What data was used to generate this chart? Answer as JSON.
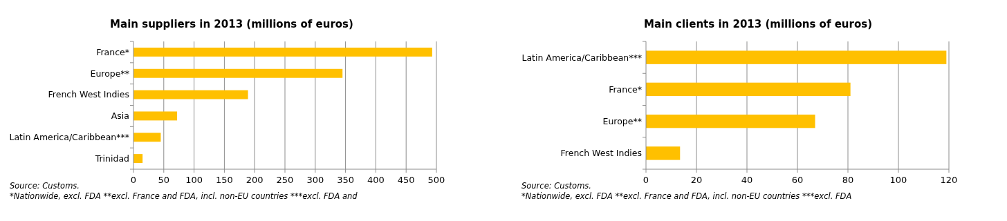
{
  "chart_data": [
    {
      "type": "bar",
      "orientation": "horizontal",
      "title": "Main suppliers in 2013 (millions of euros)",
      "categories": [
        "France*",
        "Europe**",
        "French West Indies",
        "Asia",
        "Latin America/Caribbean***",
        "Trinidad"
      ],
      "values": [
        493,
        345,
        189,
        72,
        45,
        15
      ],
      "color": "#ffc000",
      "xlim": [
        0,
        500
      ],
      "xticks": [
        0,
        50,
        100,
        150,
        200,
        250,
        300,
        350,
        400,
        450,
        500
      ],
      "grid": "x",
      "annotations": [
        "Source: Customs.",
        "*Nationwide, excl. FDA **excl. France and FDA, incl. non-EU countries ***excl. FDA and"
      ]
    },
    {
      "type": "bar",
      "orientation": "horizontal",
      "title": "Main clients in 2013 (millions of euros)",
      "categories": [
        "Latin America/Caribbean***",
        "France*",
        "Europe**",
        "French West Indies"
      ],
      "values": [
        119,
        81,
        67,
        13.5
      ],
      "color": "#ffc000",
      "xlim": [
        0,
        120
      ],
      "xticks": [
        0,
        20,
        40,
        60,
        80,
        100,
        120
      ],
      "grid": "x",
      "annotations": [
        "Source: Customs.",
        "*Nationwide, excl. FDA **excl. France and FDA, incl. non-EU countries ***excl. FDA"
      ]
    }
  ]
}
